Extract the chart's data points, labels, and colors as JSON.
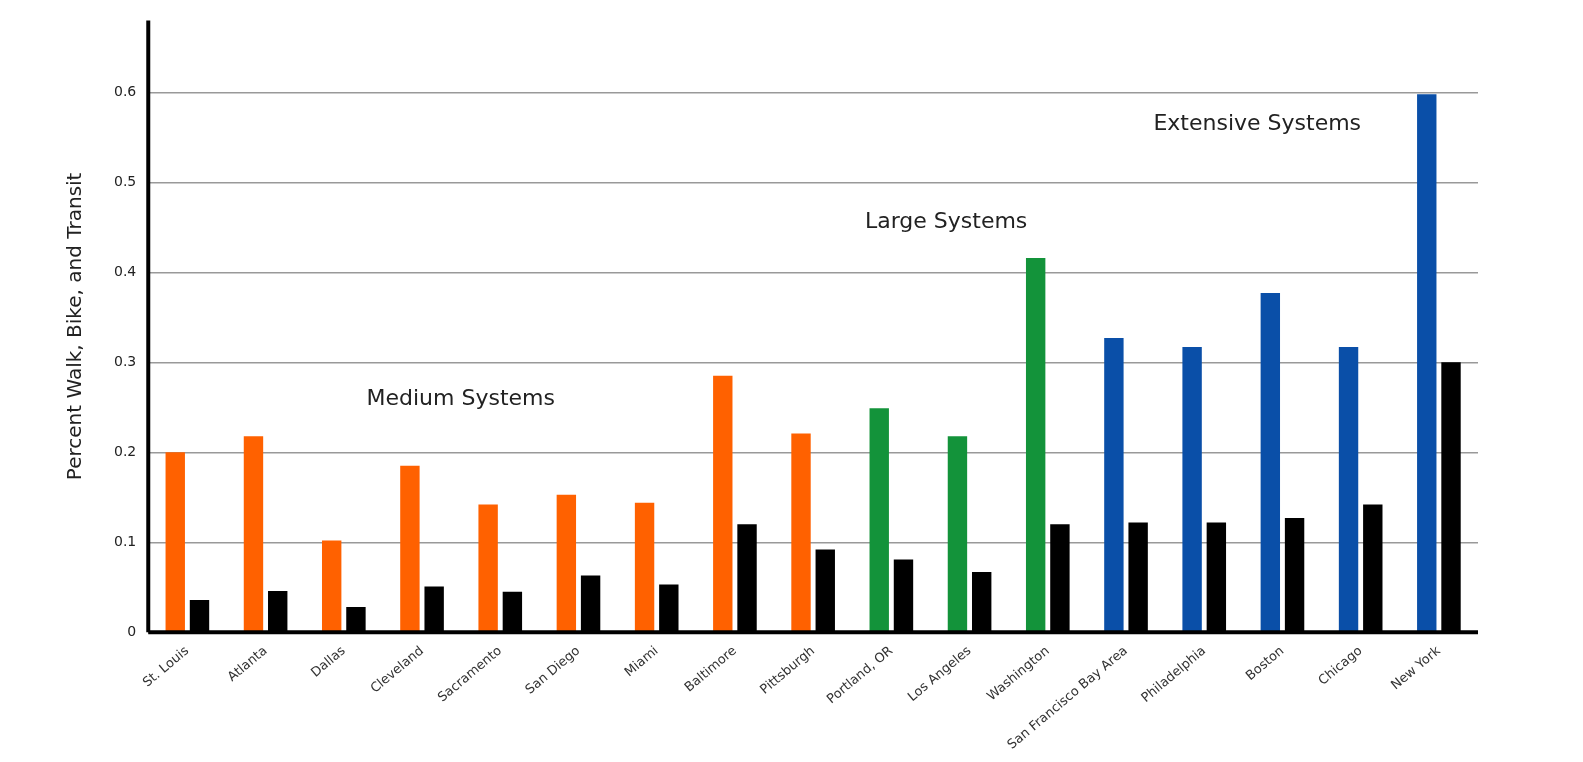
{
  "chart_data": {
    "type": "bar",
    "ylabel": "Percent Walk, Bike, and Transit",
    "categories": [
      "St. Louis",
      "Atlanta",
      "Dallas",
      "Cleveland",
      "Sacramento",
      "San Diego",
      "Miami",
      "Baltimore",
      "Pittsburgh",
      "Portland, OR",
      "Los Angeles",
      "Washington",
      "San Francisco Bay Area",
      "Philadelphia",
      "Boston",
      "Chicago",
      "New York"
    ],
    "series": [
      {
        "colors": [
          "#ff6100",
          "#ff6100",
          "#ff6100",
          "#ff6100",
          "#ff6100",
          "#ff6100",
          "#ff6100",
          "#ff6100",
          "#ff6100",
          "#13933a",
          "#13933a",
          "#13933a",
          "#0a4fa8",
          "#0a4fa8",
          "#0a4fa8",
          "#0a4fa8",
          "#0a4fa8"
        ],
        "values": [
          0.2,
          0.218,
          0.102,
          0.185,
          0.142,
          0.153,
          0.144,
          0.285,
          0.221,
          0.249,
          0.218,
          0.416,
          0.327,
          0.317,
          0.377,
          0.317,
          0.598
        ]
      },
      {
        "color": "#000000",
        "values": [
          0.036,
          0.046,
          0.028,
          0.051,
          0.045,
          0.063,
          0.053,
          0.12,
          0.092,
          0.081,
          0.067,
          0.12,
          0.122,
          0.122,
          0.127,
          0.142,
          0.3
        ]
      }
    ],
    "ylim": [
      0,
      0.68
    ],
    "yticks": [
      0,
      0.1,
      0.2,
      0.3,
      0.4,
      0.5,
      0.6
    ],
    "grid": "y",
    "legend": false,
    "annotations": [
      "Medium Systems",
      "Large Systems",
      "Extensive Systems"
    ]
  }
}
